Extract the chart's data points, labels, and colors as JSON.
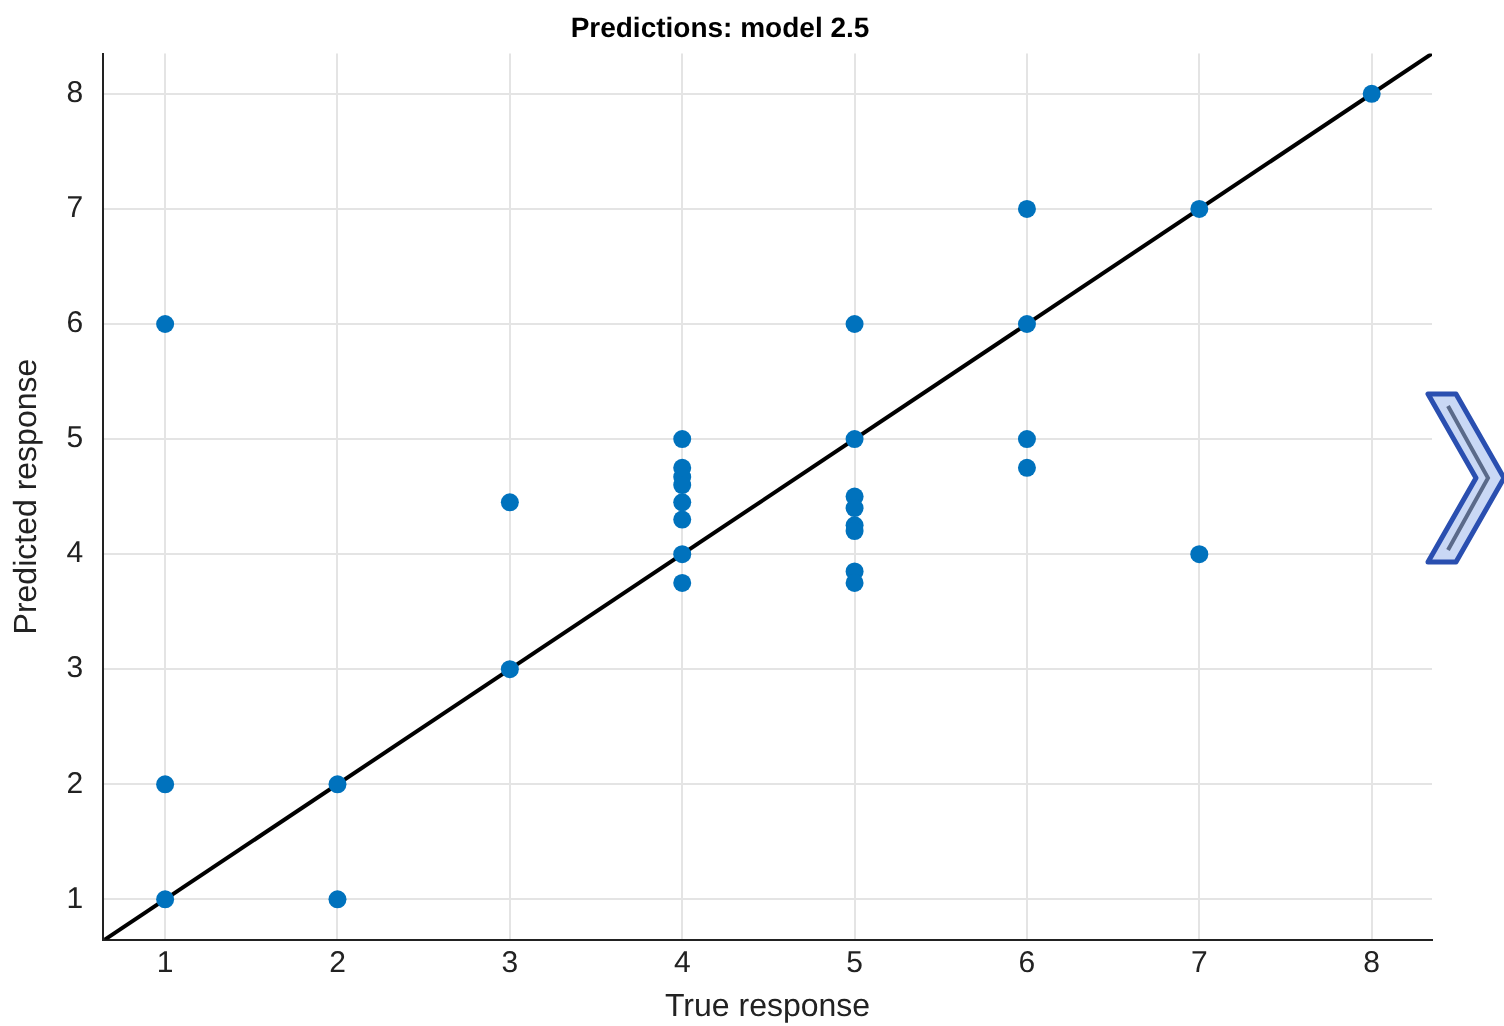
{
  "chart_data": {
    "type": "scatter",
    "title": "Predictions: model 2.5",
    "xlabel": "True response",
    "ylabel": "Predicted response",
    "xlim": [
      0.64,
      8.35
    ],
    "ylim": [
      0.65,
      8.35
    ],
    "xticks": [
      1,
      2,
      3,
      4,
      5,
      6,
      7,
      8
    ],
    "yticks": [
      1,
      2,
      3,
      4,
      5,
      6,
      7,
      8
    ],
    "grid": true,
    "legend": false,
    "marker": "circle",
    "series": [
      {
        "type": "scatter",
        "color": "#0072bd",
        "x": [
          1,
          1,
          1,
          2,
          2,
          3,
          3,
          4,
          4,
          4,
          4,
          4,
          4,
          4,
          4,
          5,
          5,
          5,
          5,
          5,
          5,
          5,
          5,
          6,
          6,
          6,
          6,
          7,
          7,
          8
        ],
        "values": [
          6,
          2,
          1,
          2,
          1,
          4.45,
          3,
          5,
          4.75,
          4.67,
          4.6,
          4.45,
          4.3,
          4,
          3.75,
          6,
          5,
          4.5,
          4.4,
          4.25,
          4.2,
          3.85,
          3.75,
          7,
          6,
          5,
          4.75,
          7,
          4,
          8
        ]
      },
      {
        "type": "line",
        "color": "#000000",
        "marker": "none",
        "x": [
          0.65,
          8.35
        ],
        "values": [
          0.65,
          8.35
        ]
      }
    ]
  }
}
